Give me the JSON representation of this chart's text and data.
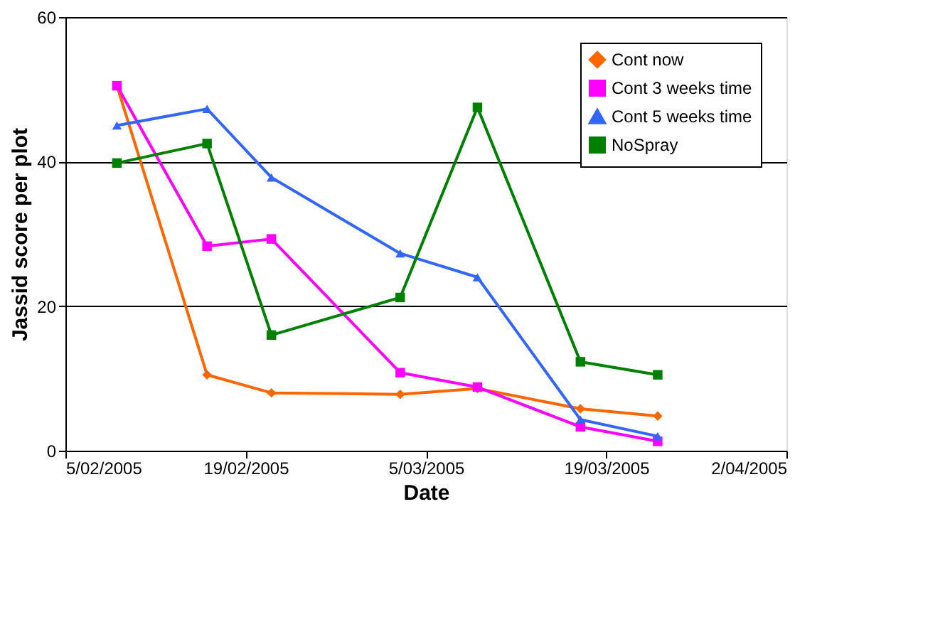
{
  "chart_data": {
    "type": "line",
    "xlabel": "Date",
    "ylabel": "Jassid score per plot",
    "x": [
      "2005-02-09",
      "2005-02-16",
      "2005-02-21",
      "2005-03-03",
      "2005-03-09",
      "2005-03-17",
      "2005-03-23"
    ],
    "series": [
      {
        "name": "Cont now",
        "color": "#ff6600",
        "marker": "diamond",
        "values": [
          50.5,
          10.5,
          8,
          7.8,
          8.6,
          5.8,
          4.8
        ]
      },
      {
        "name": "Cont 3 weeks time",
        "color": "#ff00ff",
        "marker": "square",
        "values": [
          50.5,
          28.3,
          29.3,
          10.8,
          8.8,
          3.3,
          1.3
        ]
      },
      {
        "name": "Cont 5 weeks time",
        "color": "#3366ff",
        "marker": "triangle",
        "values": [
          45,
          47.3,
          37.8,
          27.3,
          24,
          4.3,
          2
        ]
      },
      {
        "name": "NoSpray",
        "color": "#008000",
        "marker": "square",
        "values": [
          39.8,
          42.5,
          16,
          21.2,
          47.5,
          12.3,
          10.5
        ]
      }
    ],
    "xlim": [
      "2005-02-05",
      "2005-04-02"
    ],
    "xticks": [
      {
        "value": "2005-02-05",
        "label": "5/02/2005"
      },
      {
        "value": "2005-02-19",
        "label": "19/02/2005"
      },
      {
        "value": "2005-03-05",
        "label": "5/03/2005"
      },
      {
        "value": "2005-03-19",
        "label": "19/03/2005"
      },
      {
        "value": "2005-04-02",
        "label": "2/04/2005"
      }
    ],
    "ylim": [
      0,
      60
    ],
    "yticks": [
      0,
      20,
      40,
      60
    ],
    "grid": "y",
    "legend": "top right",
    "line_style": "solid"
  }
}
